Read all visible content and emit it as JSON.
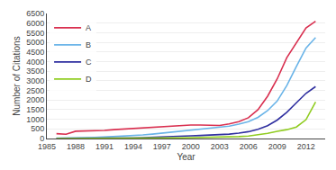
{
  "chart_data": {
    "type": "line",
    "xlabel": "Year",
    "ylabel": "Number of Citations",
    "x": [
      1986,
      1987,
      1988,
      1989,
      1990,
      1991,
      1992,
      1993,
      1994,
      1995,
      1996,
      1997,
      1998,
      1999,
      2000,
      2001,
      2002,
      2003,
      2004,
      2005,
      2006,
      2007,
      2008,
      2009,
      2010,
      2011,
      2012,
      2013
    ],
    "series": [
      {
        "name": "A",
        "color": "#d93050",
        "values": [
          250,
          220,
          380,
          390,
          390,
          420,
          460,
          490,
          530,
          570,
          600,
          640,
          670,
          690,
          700,
          700,
          690,
          680,
          760,
          880,
          1080,
          1500,
          2200,
          3100,
          4200,
          5000,
          5750,
          6100
        ]
      },
      {
        "name": "B",
        "color": "#6ab4e8",
        "values": [
          20,
          20,
          30,
          40,
          55,
          75,
          95,
          125,
          155,
          190,
          230,
          280,
          330,
          380,
          440,
          490,
          520,
          560,
          640,
          750,
          880,
          1100,
          1450,
          1950,
          2750,
          3750,
          4700,
          5250
        ]
      },
      {
        "name": "C",
        "color": "#3030a0",
        "values": [
          5,
          5,
          8,
          10,
          14,
          18,
          24,
          30,
          38,
          48,
          60,
          75,
          95,
          115,
          138,
          158,
          178,
          200,
          230,
          278,
          355,
          480,
          670,
          960,
          1360,
          1860,
          2350,
          2700
        ]
      },
      {
        "name": "D",
        "color": "#90cc20",
        "values": [
          2,
          2,
          4,
          4,
          6,
          8,
          10,
          12,
          14,
          18,
          22,
          26,
          32,
          38,
          45,
          52,
          60,
          70,
          85,
          100,
          130,
          185,
          270,
          370,
          460,
          600,
          980,
          1900
        ]
      }
    ],
    "xlim": [
      1985,
      2014
    ],
    "ylim": [
      0,
      6500
    ],
    "xticks": [
      1985,
      1988,
      1991,
      1994,
      1997,
      2000,
      2003,
      2006,
      2009,
      2012
    ],
    "yticks": [
      0,
      500,
      1000,
      1500,
      2000,
      2500,
      3000,
      3500,
      4000,
      4500,
      5000,
      5500,
      6000,
      6500
    ],
    "grid": "y",
    "legend": "upper left"
  }
}
